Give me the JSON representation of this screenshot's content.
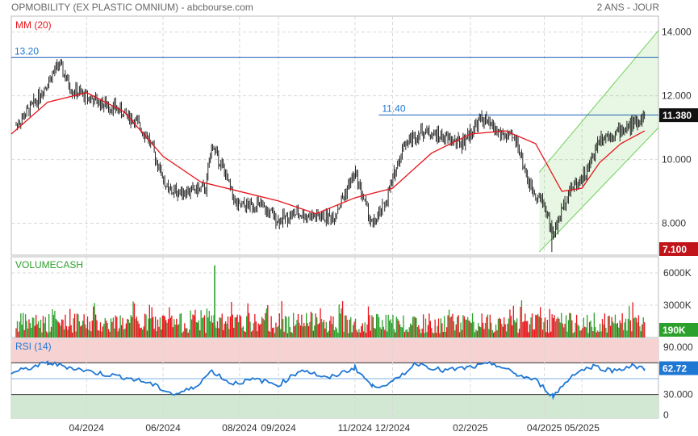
{
  "header": {
    "title": "OPMOBILITY (EX PLASTIC OMNIUM) - abcbourse.com",
    "period": "2 ANS - JOUR"
  },
  "colors": {
    "up": "#2ca02c",
    "down": "#e8141b",
    "ma": "#e8141b",
    "rsi": "#1f77d4",
    "hline": "#1a5fb4"
  },
  "chart_data": [
    {
      "type": "line",
      "panel": "price",
      "title": "",
      "indicator_label": "MM (20)",
      "ylim": [
        7,
        14.5
      ],
      "y_ticks": [
        "14.000",
        "12.000",
        "10.000",
        "8.000"
      ],
      "x_ticks": [
        "04/2024",
        "06/2024",
        "08/2024",
        "09/2024",
        "11/2024",
        "12/2024",
        "02/2025",
        "04/2025",
        "05/2025"
      ],
      "x_range": [
        "02/2024",
        "07/2025"
      ],
      "price_badges": {
        "last": "11.380",
        "low": "7.100"
      },
      "horizontal_lines": [
        {
          "label": "13.20",
          "value": 13.2
        },
        {
          "label": "11.40",
          "value": 11.4
        }
      ],
      "channel": {
        "lower": [
          [
            9.0,
            7.0
          ],
          [
            11.0,
            11.3
          ]
        ],
        "upper": [
          [
            9.6,
            11.7
          ],
          [
            14.0,
            11.3
          ]
        ]
      },
      "series": [
        {
          "name": "price",
          "x": [
            "2024-02-01",
            "2024-02-20",
            "2024-03-10",
            "2024-03-20",
            "2024-04-10",
            "2024-04-25",
            "2024-05-10",
            "2024-05-20",
            "2024-06-05",
            "2024-06-20",
            "2024-07-05",
            "2024-07-10",
            "2024-07-20",
            "2024-07-30",
            "2024-08-15",
            "2024-09-01",
            "2024-09-15",
            "2024-10-01",
            "2024-10-15",
            "2024-11-01",
            "2024-11-15",
            "2024-11-25",
            "2024-12-10",
            "2024-12-25",
            "2025-01-10",
            "2025-01-25",
            "2025-02-10",
            "2025-02-25",
            "2025-03-10",
            "2025-03-20",
            "2025-04-01",
            "2025-04-08",
            "2025-04-20",
            "2025-05-05",
            "2025-05-15",
            "2025-06-01",
            "2025-06-15",
            "2025-06-20"
          ],
          "values": [
            10.9,
            11.8,
            13.0,
            12.2,
            11.8,
            11.6,
            11.2,
            10.7,
            9.0,
            9.0,
            9.1,
            10.5,
            9.6,
            8.5,
            8.6,
            8.1,
            8.3,
            8.2,
            8.2,
            9.6,
            7.9,
            8.6,
            10.5,
            10.9,
            10.7,
            10.5,
            11.3,
            10.8,
            10.6,
            9.2,
            8.6,
            7.6,
            9.0,
            9.6,
            10.7,
            10.9,
            11.2,
            11.4
          ]
        },
        {
          "name": "MM (20)",
          "x": [
            "2024-02-01",
            "2024-03-01",
            "2024-04-01",
            "2024-05-01",
            "2024-06-01",
            "2024-07-01",
            "2024-08-01",
            "2024-09-01",
            "2024-10-01",
            "2024-11-01",
            "2024-12-01",
            "2025-01-01",
            "2025-02-01",
            "2025-03-01",
            "2025-03-25",
            "2025-04-15",
            "2025-05-01",
            "2025-05-15",
            "2025-06-01",
            "2025-06-20"
          ],
          "values": [
            10.8,
            11.8,
            12.1,
            11.5,
            10.1,
            9.3,
            9.0,
            8.7,
            8.3,
            8.8,
            9.1,
            10.2,
            10.8,
            10.9,
            10.5,
            9.0,
            9.1,
            9.9,
            10.5,
            10.9
          ]
        }
      ]
    },
    {
      "type": "bar",
      "panel": "volume",
      "title": "",
      "indicator_label": "VOLUMECASH",
      "y_ticks": [
        "6000K",
        "3000K"
      ],
      "last_value": "190K",
      "note": "daily volume bars, green on up days, red on down days; peak near 07/2024 about 6700K"
    },
    {
      "type": "line",
      "panel": "rsi",
      "title": "",
      "indicator_label": "RSI (14)",
      "ylim": [
        0,
        100
      ],
      "y_ticks": [
        "90.000",
        "30.000",
        "0"
      ],
      "levels": [
        70,
        30
      ],
      "last_value": "62.72",
      "series": [
        {
          "name": "RSI (14)",
          "x": [
            "2024-02-01",
            "2024-03-01",
            "2024-03-20",
            "2024-04-10",
            "2024-05-01",
            "2024-05-20",
            "2024-06-10",
            "2024-06-25",
            "2024-07-10",
            "2024-07-25",
            "2024-08-15",
            "2024-09-01",
            "2024-09-20",
            "2024-10-10",
            "2024-11-01",
            "2024-11-15",
            "2024-12-01",
            "2024-12-20",
            "2025-01-10",
            "2025-01-30",
            "2025-02-20",
            "2025-03-10",
            "2025-03-25",
            "2025-04-08",
            "2025-04-25",
            "2025-05-10",
            "2025-05-25",
            "2025-06-10",
            "2025-06-20"
          ],
          "values": [
            57,
            70,
            64,
            57,
            52,
            45,
            30,
            38,
            60,
            44,
            49,
            42,
            62,
            50,
            64,
            40,
            45,
            70,
            60,
            64,
            69,
            55,
            48,
            28,
            57,
            66,
            60,
            66,
            62.72
          ]
        }
      ]
    }
  ]
}
